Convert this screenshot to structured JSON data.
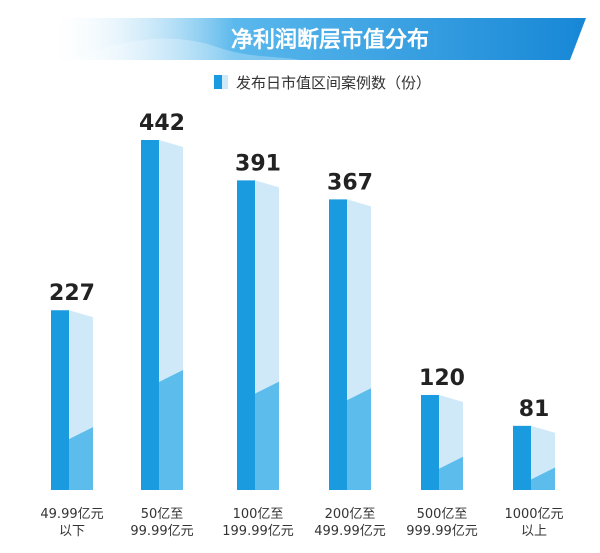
{
  "chart_data": {
    "type": "bar",
    "title": "净利润断层市值分布",
    "legend": "发布日市值区间案例数（份）",
    "categories": [
      [
        "49.99亿元",
        "以下"
      ],
      [
        "50亿至",
        "99.99亿元"
      ],
      [
        "100亿至",
        "199.99亿元"
      ],
      [
        "200亿至",
        "499.99亿元"
      ],
      [
        "500亿至",
        "999.99亿元"
      ],
      [
        "1000亿元",
        "以上"
      ]
    ],
    "series": [
      {
        "values": [
          227,
          442,
          391,
          367,
          120,
          81
        ]
      }
    ],
    "ylim": [
      0,
      442
    ],
    "grid": false,
    "legend_position": "top-center",
    "colors": {
      "front": "#1a9be0",
      "side_light": "#cfe9f9",
      "side_dark": "#5cbcec",
      "top": "#e8f5fd",
      "title_band": "#1f95dc"
    }
  }
}
